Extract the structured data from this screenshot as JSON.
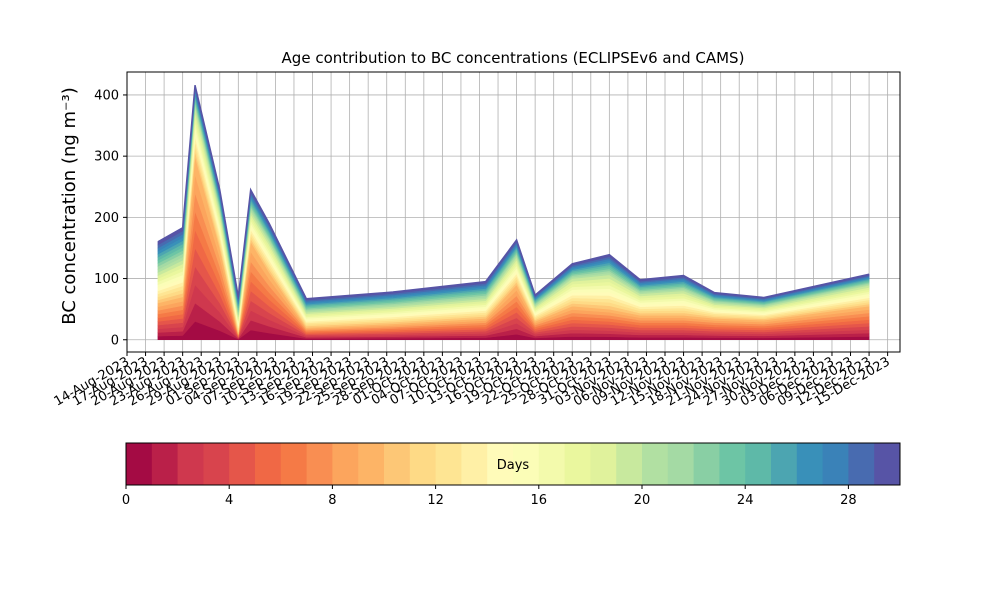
{
  "chart_data": {
    "type": "stacked-area",
    "title": "Age contribution to BC concentrations (ECLIPSEv6 and CAMS)",
    "ylabel": "BC concentration (ng m⁻³)",
    "x": [
      "2023-08-19",
      "2023-08-23",
      "2023-08-25",
      "2023-08-29",
      "2023-09-01",
      "2023-09-03",
      "2023-09-06",
      "2023-09-12",
      "2023-09-26",
      "2023-10-11",
      "2023-10-16",
      "2023-10-19",
      "2023-10-25",
      "2023-10-31",
      "2023-11-05",
      "2023-11-12",
      "2023-11-17",
      "2023-11-25",
      "2023-12-12"
    ],
    "xlim": [
      "2023-08-14",
      "2023-12-17"
    ],
    "xticks": [
      {
        "value": "2023-08-14",
        "label": "14-Aug-2023"
      },
      {
        "value": "2023-08-17",
        "label": "17-Aug-2023"
      },
      {
        "value": "2023-08-20",
        "label": "20-Aug-2023"
      },
      {
        "value": "2023-08-23",
        "label": "23-Aug-2023"
      },
      {
        "value": "2023-08-26",
        "label": "26-Aug-2023"
      },
      {
        "value": "2023-08-29",
        "label": "29-Aug-2023"
      },
      {
        "value": "2023-09-01",
        "label": "01-Sep-2023"
      },
      {
        "value": "2023-09-04",
        "label": "04-Sep-2023"
      },
      {
        "value": "2023-09-07",
        "label": "07-Sep-2023"
      },
      {
        "value": "2023-09-10",
        "label": "10-Sep-2023"
      },
      {
        "value": "2023-09-13",
        "label": "13-Sep-2023"
      },
      {
        "value": "2023-09-16",
        "label": "16-Sep-2023"
      },
      {
        "value": "2023-09-19",
        "label": "19-Sep-2023"
      },
      {
        "value": "2023-09-22",
        "label": "22-Sep-2023"
      },
      {
        "value": "2023-09-25",
        "label": "25-Sep-2023"
      },
      {
        "value": "2023-09-28",
        "label": "28-Sep-2023"
      },
      {
        "value": "2023-10-01",
        "label": "01-Oct-2023"
      },
      {
        "value": "2023-10-04",
        "label": "04-Oct-2023"
      },
      {
        "value": "2023-10-07",
        "label": "07-Oct-2023"
      },
      {
        "value": "2023-10-10",
        "label": "10-Oct-2023"
      },
      {
        "value": "2023-10-13",
        "label": "13-Oct-2023"
      },
      {
        "value": "2023-10-16",
        "label": "16-Oct-2023"
      },
      {
        "value": "2023-10-19",
        "label": "19-Oct-2023"
      },
      {
        "value": "2023-10-22",
        "label": "22-Oct-2023"
      },
      {
        "value": "2023-10-25",
        "label": "25-Oct-2023"
      },
      {
        "value": "2023-10-28",
        "label": "28-Oct-2023"
      },
      {
        "value": "2023-10-31",
        "label": "31-Oct-2023"
      },
      {
        "value": "2023-11-03",
        "label": "03-Nov-2023"
      },
      {
        "value": "2023-11-06",
        "label": "06-Nov-2023"
      },
      {
        "value": "2023-11-09",
        "label": "09-Nov-2023"
      },
      {
        "value": "2023-11-12",
        "label": "12-Nov-2023"
      },
      {
        "value": "2023-11-15",
        "label": "15-Nov-2023"
      },
      {
        "value": "2023-11-18",
        "label": "18-Nov-2023"
      },
      {
        "value": "2023-11-21",
        "label": "21-Nov-2023"
      },
      {
        "value": "2023-11-24",
        "label": "24-Nov-2023"
      },
      {
        "value": "2023-11-27",
        "label": "27-Nov-2023"
      },
      {
        "value": "2023-11-30",
        "label": "30-Nov-2023"
      },
      {
        "value": "2023-12-03",
        "label": "03-Dec-2023"
      },
      {
        "value": "2023-12-06",
        "label": "06-Dec-2023"
      },
      {
        "value": "2023-12-09",
        "label": "09-Dec-2023"
      },
      {
        "value": "2023-12-12",
        "label": "12-Dec-2023"
      },
      {
        "value": "2023-12-15",
        "label": "15-Dec-2023"
      }
    ],
    "ylim": [
      -20,
      437.5
    ],
    "yticks": [
      0,
      100,
      200,
      300,
      400
    ],
    "grid": true,
    "series": [
      {
        "color": "#a40b44",
        "values": [
          6,
          7,
          30,
          15,
          1,
          16,
          11,
          2,
          2.6,
          3.5,
          9,
          3,
          5.5,
          5,
          4,
          4,
          3.5,
          3.2,
          5.5
        ]
      },
      {
        "color": "#ba2049",
        "values": [
          6,
          7,
          30,
          15,
          1,
          16,
          11,
          2,
          2.6,
          3.5,
          9,
          3,
          5.5,
          5,
          4,
          4,
          3.5,
          3.2,
          5.5
        ]
      },
      {
        "color": "#cf384e",
        "values": [
          6,
          7,
          30,
          15,
          1,
          16,
          11,
          2,
          2.6,
          3.5,
          9,
          3,
          5.5,
          5,
          4,
          4,
          3.5,
          3.2,
          5.5
        ]
      },
      {
        "color": "#d8444d",
        "values": [
          6,
          7,
          30,
          15,
          1,
          16,
          11,
          2,
          2.6,
          3.5,
          9,
          3,
          5.5,
          5,
          4,
          4,
          3.5,
          3.2,
          5.5
        ]
      },
      {
        "color": "#e5564a",
        "values": [
          6,
          7,
          30,
          15,
          1,
          16,
          11,
          2,
          2.6,
          3.5,
          9,
          3,
          5.5,
          5,
          4,
          4,
          3.5,
          3.2,
          5.5
        ]
      },
      {
        "color": "#f06845",
        "values": [
          6,
          7,
          30,
          15,
          1,
          16,
          11,
          2,
          2.6,
          3.5,
          9,
          3,
          5.5,
          5,
          4,
          4,
          3.5,
          3.2,
          5.5
        ]
      },
      {
        "color": "#f57a46",
        "values": [
          6,
          7,
          30,
          15,
          1,
          16,
          11,
          2,
          2.6,
          3.5,
          9,
          3,
          5.5,
          5,
          4,
          4,
          3.5,
          3.2,
          5.5
        ]
      },
      {
        "color": "#f98e52",
        "values": [
          6,
          7,
          30,
          15,
          1,
          16,
          11,
          2,
          2.6,
          3.5,
          9,
          3,
          5.5,
          5,
          4,
          4,
          3.5,
          3.2,
          5.5
        ]
      },
      {
        "color": "#fca55d",
        "values": [
          6,
          7,
          30,
          15,
          1,
          16,
          11,
          2,
          2.6,
          3.5,
          9,
          3,
          5.5,
          5,
          4,
          4,
          3.5,
          3.2,
          5.5
        ]
      },
      {
        "color": "#fdb466",
        "values": [
          6,
          7,
          30,
          15,
          1,
          16,
          11,
          2,
          2.6,
          3.5,
          9,
          3,
          5.5,
          5,
          4,
          4,
          3.5,
          3.2,
          5.5
        ]
      },
      {
        "color": "#fdc776",
        "values": [
          5,
          6,
          8,
          6,
          3,
          5,
          5,
          2.5,
          2.8,
          3.2,
          4.5,
          2.5,
          4.5,
          5.6,
          3.5,
          4,
          2.5,
          2.2,
          3.4
        ]
      },
      {
        "color": "#feda86",
        "values": [
          5,
          6,
          8,
          6,
          3,
          5,
          5,
          2.5,
          2.8,
          3.2,
          4.5,
          2.5,
          4.5,
          5.6,
          3.5,
          4,
          2.5,
          2.2,
          3.4
        ]
      },
      {
        "color": "#fee593",
        "values": [
          5,
          6,
          8,
          6,
          3,
          5,
          5,
          2.5,
          2.8,
          3.2,
          4.5,
          2.5,
          4.5,
          5.6,
          3.5,
          4,
          2.5,
          2.2,
          3.4
        ]
      },
      {
        "color": "#fff0a6",
        "values": [
          5,
          6,
          8,
          6,
          3,
          5,
          5,
          2.5,
          2.8,
          3.2,
          4.5,
          2.5,
          4.5,
          5.6,
          3.5,
          4,
          2.5,
          2.2,
          3.4
        ]
      },
      {
        "color": "#fffbb9",
        "values": [
          5,
          6,
          8,
          6,
          3,
          5,
          5,
          2.5,
          2.8,
          3.2,
          4.5,
          2.5,
          4.5,
          5.6,
          3.5,
          4,
          2.5,
          2.2,
          3.4
        ]
      },
      {
        "color": "#fbfdb7",
        "values": [
          5,
          6,
          8,
          6,
          3,
          5,
          5,
          2.5,
          2.8,
          3.2,
          4.5,
          2.5,
          4.5,
          5.6,
          3.5,
          4,
          2.5,
          2.2,
          3.4
        ]
      },
      {
        "color": "#f3faac",
        "values": [
          5,
          6,
          8,
          6,
          3,
          5,
          5,
          2.5,
          2.8,
          3.2,
          4.5,
          2.5,
          4.5,
          5.6,
          3.5,
          4,
          2.5,
          2.2,
          3.4
        ]
      },
      {
        "color": "#eaf79e",
        "values": [
          5,
          6,
          8,
          6,
          3,
          5,
          5,
          2.5,
          2.8,
          3.2,
          4.5,
          2.5,
          4.5,
          5.6,
          3.5,
          4,
          2.5,
          2.2,
          3.4
        ]
      },
      {
        "color": "#e0f29c",
        "values": [
          5,
          6,
          8,
          6,
          3,
          5,
          5,
          2.5,
          2.8,
          3.2,
          4.5,
          2.5,
          4.5,
          5.6,
          3.5,
          4,
          2.5,
          2.2,
          3.4
        ]
      },
      {
        "color": "#c8e99e",
        "values": [
          5,
          6,
          8,
          6,
          3,
          5,
          5,
          2.5,
          2.8,
          3.2,
          4.5,
          2.5,
          4.5,
          5.6,
          3.5,
          4,
          2.5,
          2.2,
          3.4
        ]
      },
      {
        "color": "#b1e0a2",
        "values": [
          5,
          5.3,
          3.6,
          3.5,
          3,
          3.5,
          3,
          2.2,
          2.4,
          2.8,
          2.8,
          1.8,
          2.4,
          3.3,
          2.3,
          2.5,
          1.7,
          1.5,
          1.8
        ]
      },
      {
        "color": "#a4daa4",
        "values": [
          5,
          5.3,
          3.6,
          3.5,
          3,
          3.5,
          3,
          2.2,
          2.4,
          2.8,
          2.8,
          1.8,
          2.4,
          3.3,
          2.3,
          2.5,
          1.7,
          1.5,
          1.8
        ]
      },
      {
        "color": "#89cfa4",
        "values": [
          5,
          5.3,
          3.6,
          3.5,
          3,
          3.5,
          3,
          2.2,
          2.4,
          2.8,
          2.8,
          1.8,
          2.4,
          3.3,
          2.3,
          2.5,
          1.7,
          1.5,
          1.8
        ]
      },
      {
        "color": "#6dc5a5",
        "values": [
          5,
          5.3,
          3.6,
          3.5,
          3,
          3.5,
          3,
          2.2,
          2.4,
          2.8,
          2.8,
          1.8,
          2.4,
          3.3,
          2.3,
          2.5,
          1.7,
          1.5,
          1.8
        ]
      },
      {
        "color": "#5eb9a8",
        "values": [
          5,
          5.3,
          3.6,
          3.5,
          3,
          3.5,
          3,
          2.2,
          2.4,
          2.8,
          2.8,
          1.8,
          2.4,
          3.3,
          2.3,
          2.5,
          1.7,
          1.5,
          1.8
        ]
      },
      {
        "color": "#4ca5b1",
        "values": [
          5,
          5.3,
          3.6,
          3.5,
          3,
          3.5,
          3,
          2.2,
          2.4,
          2.8,
          2.8,
          1.8,
          2.4,
          3.3,
          2.3,
          2.5,
          1.7,
          1.5,
          1.8
        ]
      },
      {
        "color": "#3990b9",
        "values": [
          5,
          5.3,
          3.6,
          3.5,
          3,
          3.5,
          3,
          2.2,
          2.4,
          2.8,
          2.8,
          1.8,
          2.4,
          3.3,
          2.3,
          2.5,
          1.7,
          1.5,
          1.8
        ]
      },
      {
        "color": "#3a82b8",
        "values": [
          5,
          5.3,
          3.6,
          3.5,
          3,
          3.5,
          3,
          2.2,
          2.4,
          2.8,
          2.8,
          1.8,
          2.4,
          3.3,
          2.3,
          2.5,
          1.7,
          1.5,
          1.8
        ]
      },
      {
        "color": "#486bb0",
        "values": [
          5,
          5.3,
          3.6,
          3.5,
          3,
          3.5,
          3,
          2.2,
          2.4,
          2.8,
          2.8,
          1.8,
          2.4,
          3.3,
          2.3,
          2.5,
          1.7,
          1.5,
          1.8
        ]
      },
      {
        "color": "#5754a6",
        "values": [
          5,
          5.3,
          3.6,
          3.5,
          3,
          3.5,
          3,
          2.2,
          2.4,
          2.8,
          2.8,
          1.8,
          2.4,
          3.3,
          2.3,
          2.5,
          1.7,
          1.5,
          1.8
        ]
      }
    ],
    "colorbar": {
      "label": "Days",
      "lim": [
        0,
        30
      ],
      "ticks": [
        0,
        4,
        8,
        12,
        16,
        20,
        24,
        28
      ]
    }
  }
}
